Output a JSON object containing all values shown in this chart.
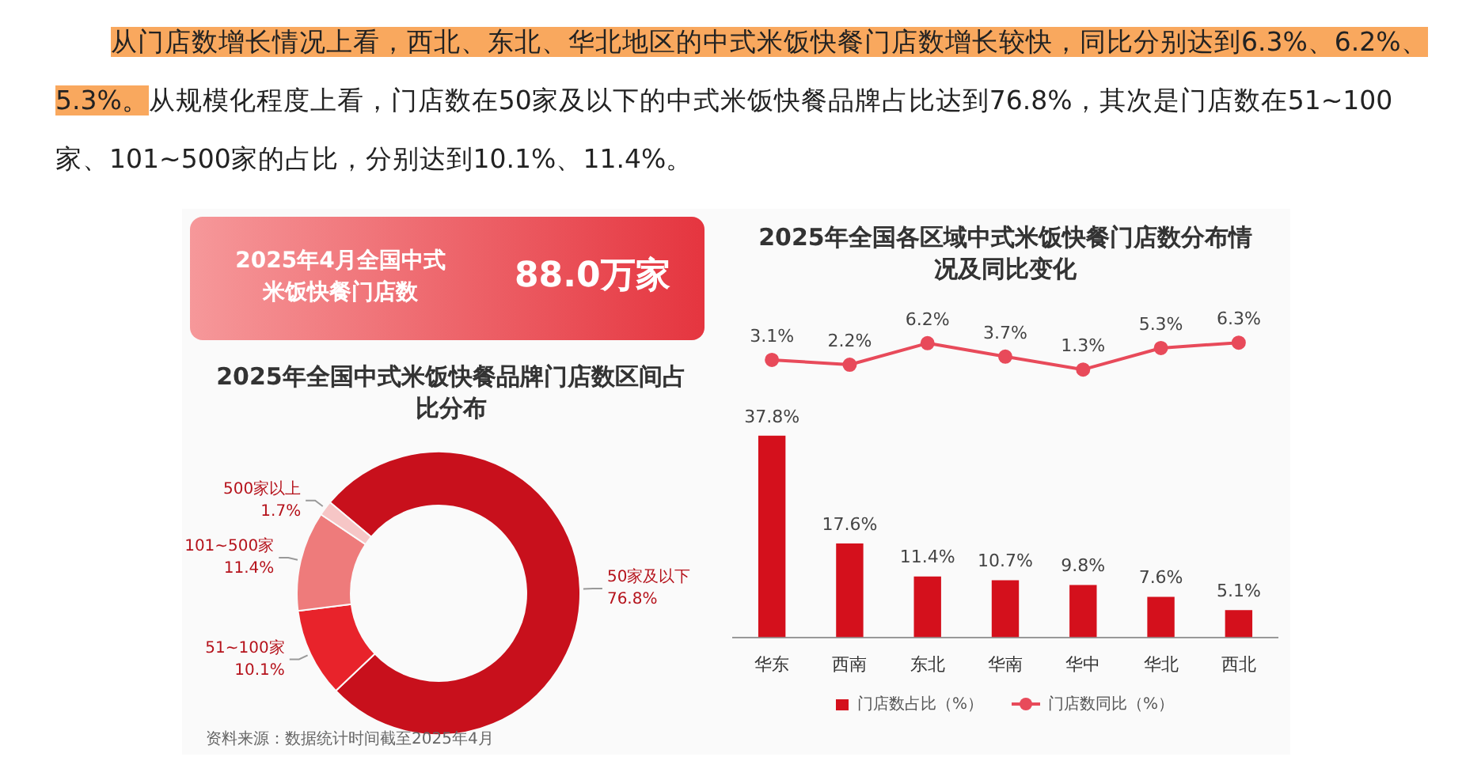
{
  "chart_data": [
    {
      "type": "other",
      "annotations": [
        "从门店数增长情况上看，西北、东北、华北地区的中式米饭快餐门店数增长较快，同比分别达到6.3%、6.2%、5.3%。",
        "从规模化程度上看，门店数在50家及以下的中式米饭快餐品牌占比达到76.8%，其次是门店数在51~100家、101~500家的占比，分别达到10.1%、11.4%。"
      ]
    },
    {
      "type": "other",
      "title": "2025年4月全国中式米饭快餐门店数",
      "annotations": [
        "88.0万家"
      ]
    },
    {
      "type": "donut",
      "title": "2025年全国中式米饭快餐品牌门店数区间占比分布",
      "categories": [
        "50家及以下",
        "51~100家",
        "101~500家",
        "500家以上"
      ],
      "values": [
        76.8,
        10.1,
        11.4,
        1.7
      ],
      "value_labels": [
        "76.8%",
        "10.1%",
        "11.4%",
        "1.7%"
      ],
      "colors": [
        "#c8101c",
        "#e8232b",
        "#ee7b7b",
        "#f6c6c6"
      ],
      "annotations": [
        "资料来源：数据统计时间截至2025年4月"
      ]
    },
    {
      "type": "line",
      "title": "2025年全国各区域中式米饭快餐门店数分布情况及同比变化",
      "categories": [
        null,
        null,
        null,
        null,
        null,
        null,
        null
      ],
      "tick_labels": false,
      "legend": "bottom",
      "marker": "circle",
      "series": [
        {
          "name": "门店数同比（%）",
          "color": "#e84a5a",
          "values": [
            3.1,
            2.2,
            6.2,
            3.7,
            1.3,
            5.3,
            6.3
          ],
          "value_labels": [
            "3.1%",
            "2.2%",
            "6.2%",
            "3.7%",
            "1.3%",
            "5.3%",
            "6.3%"
          ]
        }
      ]
    },
    {
      "type": "bar",
      "categories": [
        "华东",
        "西南",
        "东北",
        "华南",
        "华中",
        "华北",
        "西北"
      ],
      "legend": "bottom",
      "series": [
        {
          "name": "门店数占比（%）",
          "color": "#d4101c",
          "values": [
            37.8,
            17.6,
            11.4,
            10.7,
            9.8,
            7.6,
            5.1
          ],
          "value_labels": [
            "37.8%",
            "17.6%",
            "11.4%",
            "10.7%",
            "9.8%",
            "7.6%",
            "5.1%"
          ]
        }
      ]
    }
  ]
}
